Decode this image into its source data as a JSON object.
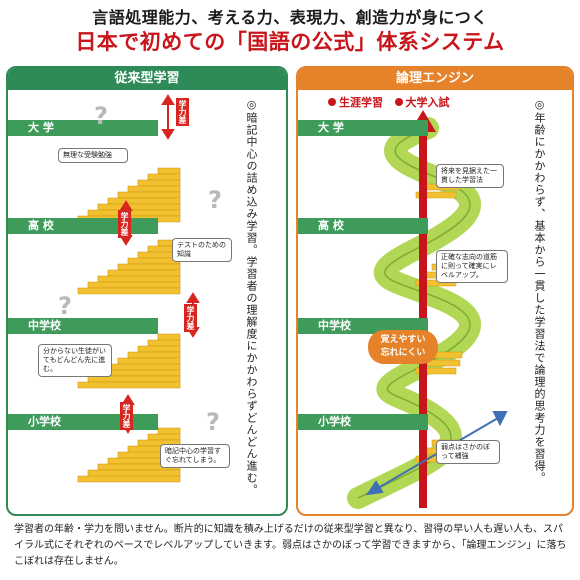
{
  "header": {
    "line1": "言語処理能力、考える力、表現力、創造力が身につく",
    "line2_prefix": "日本で初めての",
    "line2_highlight": "「国語の公式」",
    "line2_suffix": "体系システム"
  },
  "left_panel": {
    "title": "従来型学習",
    "stages": [
      "大 学",
      "高 校",
      "中学校",
      "小学校"
    ],
    "gap_label": "学力差",
    "notes": [
      "無理な受験勉強",
      "テストのための知識",
      "分からない生徒がいてもどんどん先に進む。",
      "暗記中心の学習すぐ忘れてしまう。"
    ],
    "vertical_text": "◎暗記中心の詰め込み学習。学習者の理解度にかかわらずどんどん進む。"
  },
  "right_panel": {
    "title": "論理エンジン",
    "legend": [
      "生涯学習",
      "大学入試"
    ],
    "stages": [
      "大 学",
      "高 校",
      "中学校",
      "小学校"
    ],
    "notes": [
      "将来を見据えた一貫した学習法",
      "正確な志向の道筋に則って確実にレベルアップ。",
      "弱点はさかのぼって補強"
    ],
    "spiral_label_1": "覚えやすい",
    "spiral_label_2": "忘れにくい",
    "vertical_text": "◎年齢にかかわらず、基本から一貫した学習法で論理的思考力を習得。"
  },
  "footer": {
    "text": "学習者の年齢・学力を問いません。断片的に知識を積み上げるだけの従来型学習と異なり、習得の早い人も遅い人も、スパイラル式にそれぞれのペースでレベルアップしていきます。弱点はさかのぼって学習できますから、「論理エンジン」に落ちこぼれは存在しません。"
  },
  "colors": {
    "brand_red": "#c8151b",
    "left_green": "#2e8b57",
    "right_orange": "#e5822a",
    "stair_yellow": "#f2c130",
    "spiral_green": "#a9d341",
    "arrow_red": "#c8151b"
  }
}
